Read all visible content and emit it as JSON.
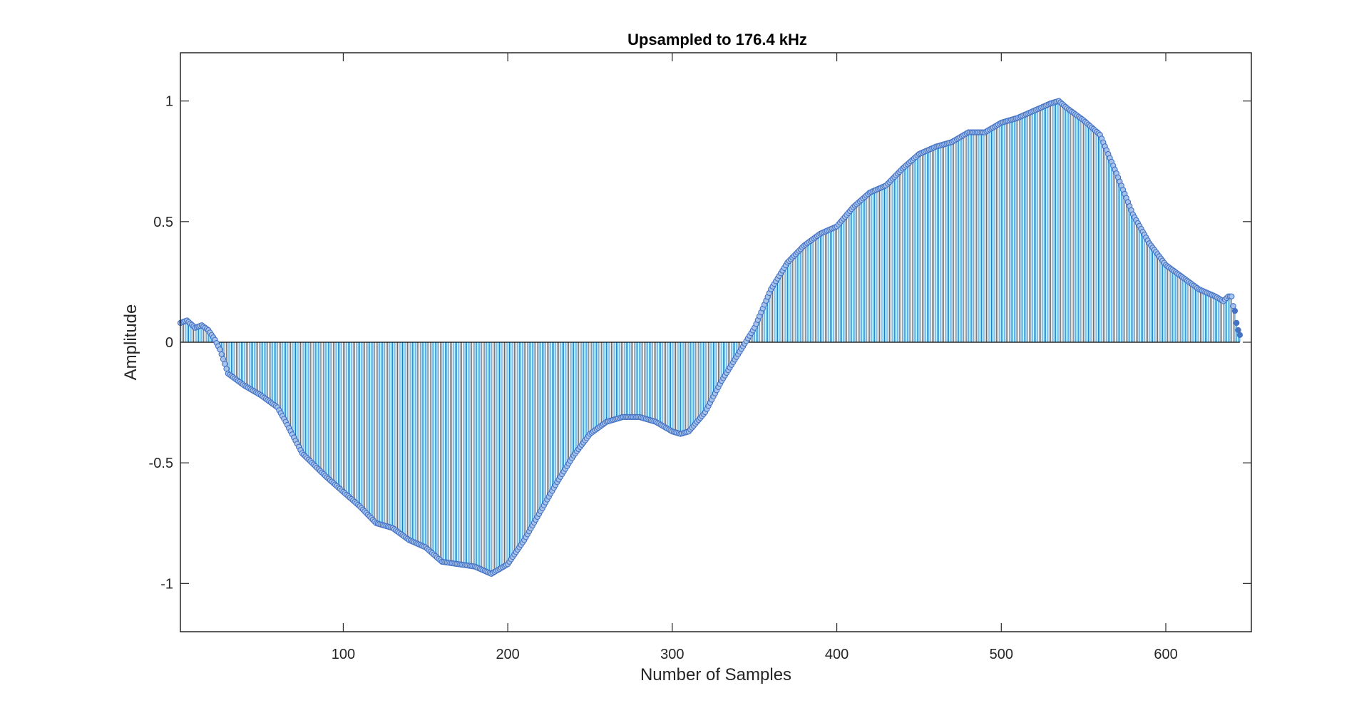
{
  "chart_data": {
    "type": "stem",
    "title": "Upsampled to 176.4 kHz",
    "xlabel": "Number of Samples",
    "ylabel": "Amplitude",
    "xlim": [
      1,
      652
    ],
    "ylim": [
      -1.2,
      1.2
    ],
    "xticks": [
      100,
      200,
      300,
      400,
      500,
      600
    ],
    "yticks": [
      -1,
      -0.5,
      0,
      0.5,
      1
    ],
    "xtick_labels": [
      "100",
      "200",
      "300",
      "400",
      "500",
      "600"
    ],
    "ytick_labels": [
      "-1",
      "-0.5",
      "0",
      "0.5",
      "1"
    ],
    "n_samples": 645,
    "grid": false,
    "legend": "none",
    "colors": {
      "stem": "#0072BD",
      "marker_edge": "#4472C4",
      "marker_fill": "#A9C4EB",
      "baseline": "#000000"
    },
    "envelope": {
      "x": [
        1,
        5,
        10,
        14,
        18,
        22,
        25,
        30,
        40,
        50,
        60,
        65,
        75,
        90,
        100,
        110,
        120,
        130,
        140,
        150,
        160,
        170,
        180,
        190,
        200,
        210,
        220,
        230,
        240,
        250,
        260,
        270,
        280,
        290,
        300,
        305,
        310,
        320,
        330,
        340,
        350,
        360,
        370,
        380,
        390,
        400,
        410,
        420,
        430,
        440,
        450,
        460,
        470,
        480,
        490,
        500,
        510,
        520,
        530,
        535,
        540,
        550,
        560,
        570,
        580,
        590,
        600,
        610,
        620,
        630,
        635,
        638,
        640,
        641,
        642,
        643,
        644,
        645
      ],
      "y": [
        0.08,
        0.09,
        0.06,
        0.07,
        0.05,
        0.01,
        -0.03,
        -0.13,
        -0.18,
        -0.22,
        -0.27,
        -0.33,
        -0.46,
        -0.56,
        -0.62,
        -0.68,
        -0.75,
        -0.77,
        -0.82,
        -0.85,
        -0.91,
        -0.92,
        -0.93,
        -0.96,
        -0.92,
        -0.82,
        -0.7,
        -0.58,
        -0.47,
        -0.38,
        -0.33,
        -0.31,
        -0.31,
        -0.33,
        -0.37,
        -0.38,
        -0.37,
        -0.29,
        -0.16,
        -0.05,
        0.06,
        0.22,
        0.33,
        0.4,
        0.45,
        0.48,
        0.56,
        0.62,
        0.65,
        0.72,
        0.78,
        0.81,
        0.83,
        0.87,
        0.87,
        0.91,
        0.93,
        0.96,
        0.99,
        1.0,
        0.97,
        0.92,
        0.86,
        0.7,
        0.53,
        0.41,
        0.32,
        0.27,
        0.22,
        0.19,
        0.17,
        0.19,
        0.19,
        0.15,
        0.13,
        0.08,
        0.05,
        0.03
      ]
    }
  }
}
